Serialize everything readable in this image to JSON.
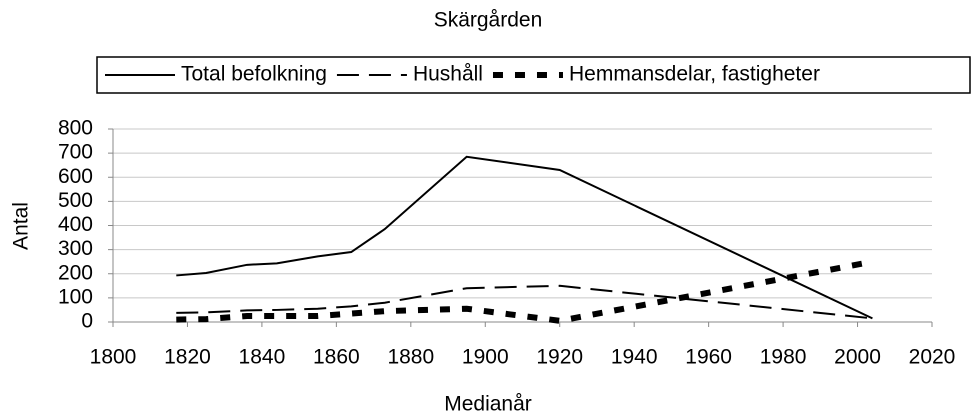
{
  "chart_data": {
    "type": "line",
    "title": "Skärgården",
    "x_label": "Medianår",
    "y_label": "Antal",
    "x": [
      1817,
      1825,
      1836,
      1844,
      1855,
      1864,
      1873,
      1895,
      1920,
      2004
    ],
    "series": [
      {
        "name": "Total befolkning",
        "color": "#000000",
        "dash": "solid",
        "values": [
          193,
          203,
          237,
          243,
          272,
          290,
          385,
          685,
          630,
          15
        ]
      },
      {
        "name": "Hushåll",
        "color": "#000000",
        "dash": "dashed",
        "values": [
          38,
          40,
          48,
          50,
          55,
          65,
          80,
          140,
          150,
          15
        ]
      },
      {
        "name": "Hemmansdelar, fastigheter",
        "color": "#000000",
        "dash": "dotted",
        "values": [
          10,
          12,
          25,
          25,
          25,
          35,
          45,
          55,
          5,
          250
        ]
      }
    ],
    "xlim": [
      1800,
      2020
    ],
    "xticks": [
      1800,
      1820,
      1840,
      1860,
      1880,
      1900,
      1920,
      1940,
      1960,
      1980,
      2000,
      2020
    ],
    "ylim": [
      0,
      800
    ],
    "yticks": [
      0,
      100,
      200,
      300,
      400,
      500,
      600,
      700,
      800
    ],
    "grid": true,
    "legend": "top"
  }
}
